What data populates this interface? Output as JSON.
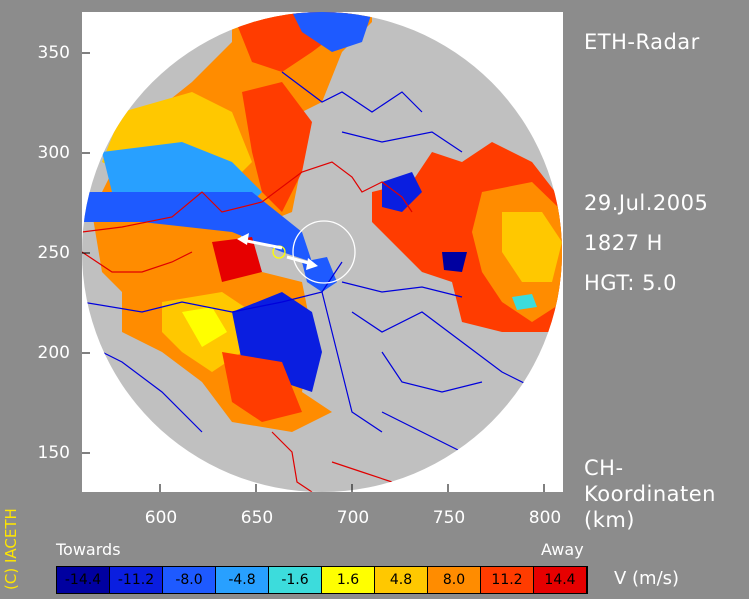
{
  "title": "ETH-Radar",
  "date": "29.Jul.2005",
  "time": "1827 H",
  "height": "HGT: 5.0",
  "coords_line1": "CH-",
  "coords_line2": "Koordinaten",
  "coords_unit": "(km)",
  "copyright": "(C) IACETH",
  "towards_label": "Towards",
  "away_label": "Away",
  "unit": "V  (m/s)",
  "x_axis": {
    "ticks": [
      "600",
      "650",
      "700",
      "750",
      "800"
    ]
  },
  "y_axis": {
    "ticks": [
      "350",
      "300",
      "250",
      "200",
      "150"
    ]
  },
  "colorbar": [
    {
      "label": "-14.4",
      "color": "#0000a0",
      "text_color": "#000000"
    },
    {
      "label": "-11.2",
      "color": "#0a1ee0",
      "text_color": "#000000"
    },
    {
      "label": "-8.0",
      "color": "#1e5aff",
      "text_color": "#000000"
    },
    {
      "label": "-4.8",
      "color": "#28a0ff",
      "text_color": "#000000"
    },
    {
      "label": "-1.6",
      "color": "#3cdcdc",
      "text_color": "#000000"
    },
    {
      "label": "1.6",
      "color": "#ffff00",
      "text_color": "#000000"
    },
    {
      "label": "4.8",
      "color": "#ffc800",
      "text_color": "#000000"
    },
    {
      "label": "8.0",
      "color": "#ff8c00",
      "text_color": "#000000"
    },
    {
      "label": "11.2",
      "color": "#ff3c00",
      "text_color": "#000000"
    },
    {
      "label": "14.4",
      "color": "#e60000",
      "text_color": "#000000"
    }
  ],
  "map_colors": {
    "background": "#c0c0c0",
    "border_line": "#e00000",
    "river_line": "#0000dc"
  }
}
